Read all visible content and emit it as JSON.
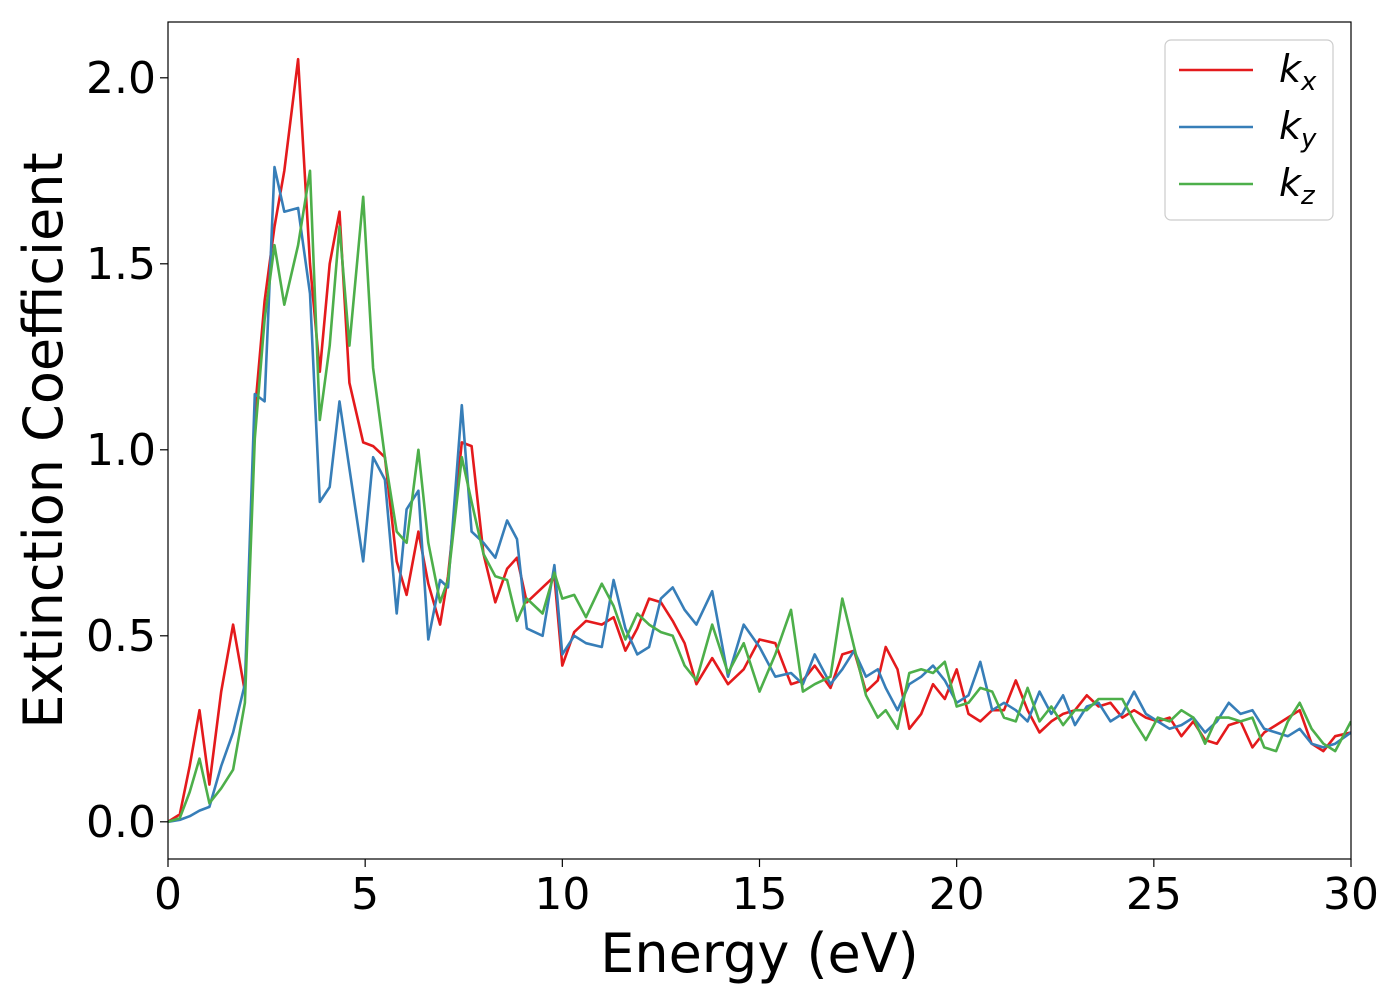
{
  "chart_data": {
    "type": "line",
    "title": "",
    "xlabel": "Energy (eV)",
    "ylabel": "Extinction Coefficient",
    "xlim": [
      0,
      30
    ],
    "ylim": [
      -0.1,
      2.15
    ],
    "xticks": [
      0,
      5,
      10,
      15,
      20,
      25,
      30
    ],
    "xtick_labels": [
      "0",
      "5",
      "10",
      "15",
      "20",
      "25",
      "30"
    ],
    "yticks": [
      0.0,
      0.5,
      1.0,
      1.5,
      2.0
    ],
    "ytick_labels": [
      "0.0",
      "0.5",
      "1.0",
      "1.5",
      "2.0"
    ],
    "grid": false,
    "legend_position": "top-right",
    "series": [
      {
        "name": "k_x",
        "label_main": "k",
        "label_sub": "x",
        "color": "#e41a1c",
        "x": [
          0,
          0.3,
          0.55,
          0.8,
          1.05,
          1.35,
          1.65,
          1.95,
          2.2,
          2.45,
          2.7,
          2.95,
          3.3,
          3.6,
          3.85,
          4.1,
          4.35,
          4.6,
          4.95,
          5.2,
          5.5,
          5.8,
          6.05,
          6.35,
          6.6,
          6.9,
          7.1,
          7.45,
          7.7,
          8.0,
          8.3,
          8.6,
          8.85,
          9.1,
          9.5,
          9.8,
          10.0,
          10.3,
          10.6,
          11.0,
          11.3,
          11.6,
          11.9,
          12.2,
          12.5,
          12.8,
          13.1,
          13.4,
          13.8,
          14.2,
          14.6,
          15.0,
          15.4,
          15.8,
          16.1,
          16.4,
          16.8,
          17.1,
          17.4,
          17.7,
          18.0,
          18.2,
          18.5,
          18.8,
          19.1,
          19.4,
          19.7,
          20.0,
          20.3,
          20.6,
          20.9,
          21.2,
          21.5,
          21.8,
          22.1,
          22.4,
          22.7,
          23.0,
          23.3,
          23.6,
          23.9,
          24.2,
          24.5,
          24.8,
          25.1,
          25.4,
          25.7,
          26.0,
          26.3,
          26.6,
          26.9,
          27.2,
          27.5,
          27.8,
          28.1,
          28.4,
          28.7,
          29.0,
          29.3,
          29.6,
          30.0
        ],
        "y": [
          0.0,
          0.02,
          0.15,
          0.3,
          0.1,
          0.35,
          0.53,
          0.35,
          1.1,
          1.4,
          1.6,
          1.75,
          2.05,
          1.5,
          1.21,
          1.5,
          1.64,
          1.18,
          1.02,
          1.01,
          0.98,
          0.7,
          0.61,
          0.78,
          0.64,
          0.53,
          0.66,
          1.02,
          1.01,
          0.72,
          0.59,
          0.68,
          0.71,
          0.59,
          0.63,
          0.66,
          0.42,
          0.51,
          0.54,
          0.53,
          0.55,
          0.46,
          0.52,
          0.6,
          0.59,
          0.54,
          0.48,
          0.37,
          0.44,
          0.37,
          0.41,
          0.49,
          0.48,
          0.37,
          0.38,
          0.42,
          0.36,
          0.45,
          0.46,
          0.35,
          0.38,
          0.47,
          0.41,
          0.25,
          0.29,
          0.37,
          0.33,
          0.41,
          0.29,
          0.27,
          0.3,
          0.3,
          0.38,
          0.3,
          0.24,
          0.27,
          0.29,
          0.3,
          0.34,
          0.31,
          0.32,
          0.28,
          0.3,
          0.28,
          0.27,
          0.28,
          0.23,
          0.27,
          0.22,
          0.21,
          0.26,
          0.27,
          0.2,
          0.24,
          0.26,
          0.28,
          0.3,
          0.21,
          0.19,
          0.23,
          0.24
        ]
      },
      {
        "name": "k_y",
        "label_main": "k",
        "label_sub": "y",
        "color": "#377eb8",
        "x": [
          0,
          0.3,
          0.55,
          0.8,
          1.05,
          1.35,
          1.65,
          1.95,
          2.2,
          2.45,
          2.7,
          2.95,
          3.3,
          3.6,
          3.85,
          4.1,
          4.35,
          4.6,
          4.95,
          5.2,
          5.5,
          5.8,
          6.05,
          6.35,
          6.6,
          6.9,
          7.1,
          7.45,
          7.7,
          8.0,
          8.3,
          8.6,
          8.85,
          9.1,
          9.5,
          9.8,
          10.0,
          10.3,
          10.6,
          11.0,
          11.3,
          11.6,
          11.9,
          12.2,
          12.5,
          12.8,
          13.1,
          13.4,
          13.8,
          14.2,
          14.6,
          15.0,
          15.4,
          15.8,
          16.1,
          16.4,
          16.8,
          17.1,
          17.4,
          17.7,
          18.0,
          18.2,
          18.5,
          18.8,
          19.1,
          19.4,
          19.7,
          20.0,
          20.3,
          20.6,
          20.9,
          21.2,
          21.5,
          21.8,
          22.1,
          22.4,
          22.7,
          23.0,
          23.3,
          23.6,
          23.9,
          24.2,
          24.5,
          24.8,
          25.1,
          25.4,
          25.7,
          26.0,
          26.3,
          26.6,
          26.9,
          27.2,
          27.5,
          27.8,
          28.1,
          28.4,
          28.7,
          29.0,
          29.3,
          29.6,
          30.0
        ],
        "y": [
          0.0,
          0.005,
          0.015,
          0.03,
          0.04,
          0.15,
          0.24,
          0.37,
          1.15,
          1.13,
          1.76,
          1.64,
          1.65,
          1.42,
          0.86,
          0.9,
          1.13,
          0.95,
          0.7,
          0.98,
          0.92,
          0.56,
          0.84,
          0.89,
          0.49,
          0.65,
          0.63,
          1.12,
          0.78,
          0.75,
          0.71,
          0.81,
          0.76,
          0.52,
          0.5,
          0.69,
          0.45,
          0.5,
          0.48,
          0.47,
          0.65,
          0.52,
          0.45,
          0.47,
          0.6,
          0.63,
          0.57,
          0.53,
          0.62,
          0.39,
          0.53,
          0.47,
          0.39,
          0.4,
          0.37,
          0.45,
          0.37,
          0.41,
          0.46,
          0.39,
          0.41,
          0.36,
          0.3,
          0.37,
          0.39,
          0.42,
          0.38,
          0.32,
          0.34,
          0.43,
          0.3,
          0.32,
          0.3,
          0.27,
          0.35,
          0.29,
          0.34,
          0.26,
          0.31,
          0.32,
          0.27,
          0.29,
          0.35,
          0.29,
          0.27,
          0.25,
          0.26,
          0.28,
          0.24,
          0.27,
          0.32,
          0.29,
          0.3,
          0.25,
          0.24,
          0.23,
          0.25,
          0.21,
          0.2,
          0.21,
          0.24
        ]
      },
      {
        "name": "k_z",
        "label_main": "k",
        "label_sub": "z",
        "color": "#4daf4a",
        "x": [
          0,
          0.3,
          0.55,
          0.8,
          1.05,
          1.35,
          1.65,
          1.95,
          2.2,
          2.45,
          2.7,
          2.95,
          3.3,
          3.6,
          3.85,
          4.1,
          4.35,
          4.6,
          4.95,
          5.2,
          5.5,
          5.8,
          6.05,
          6.35,
          6.6,
          6.9,
          7.1,
          7.45,
          7.7,
          8.0,
          8.3,
          8.6,
          8.85,
          9.1,
          9.5,
          9.8,
          10.0,
          10.3,
          10.6,
          11.0,
          11.3,
          11.6,
          11.9,
          12.2,
          12.5,
          12.8,
          13.1,
          13.4,
          13.8,
          14.2,
          14.6,
          15.0,
          15.4,
          15.8,
          16.1,
          16.4,
          16.8,
          17.1,
          17.4,
          17.7,
          18.0,
          18.2,
          18.5,
          18.8,
          19.1,
          19.4,
          19.7,
          20.0,
          20.3,
          20.6,
          20.9,
          21.2,
          21.5,
          21.8,
          22.1,
          22.4,
          22.7,
          23.0,
          23.3,
          23.6,
          23.9,
          24.2,
          24.5,
          24.8,
          25.1,
          25.4,
          25.7,
          26.0,
          26.3,
          26.6,
          26.9,
          27.2,
          27.5,
          27.8,
          28.1,
          28.4,
          28.7,
          29.0,
          29.3,
          29.6,
          30.0
        ],
        "y": [
          0.0,
          0.01,
          0.08,
          0.17,
          0.05,
          0.09,
          0.14,
          0.32,
          1.03,
          1.35,
          1.55,
          1.39,
          1.55,
          1.75,
          1.08,
          1.28,
          1.6,
          1.28,
          1.68,
          1.22,
          0.98,
          0.78,
          0.75,
          1.0,
          0.75,
          0.59,
          0.65,
          0.98,
          0.86,
          0.72,
          0.66,
          0.65,
          0.54,
          0.6,
          0.56,
          0.67,
          0.6,
          0.61,
          0.55,
          0.64,
          0.58,
          0.49,
          0.56,
          0.53,
          0.51,
          0.5,
          0.42,
          0.38,
          0.53,
          0.4,
          0.48,
          0.35,
          0.45,
          0.57,
          0.35,
          0.37,
          0.39,
          0.6,
          0.47,
          0.34,
          0.28,
          0.3,
          0.25,
          0.4,
          0.41,
          0.4,
          0.43,
          0.31,
          0.32,
          0.36,
          0.35,
          0.28,
          0.27,
          0.36,
          0.27,
          0.31,
          0.26,
          0.3,
          0.3,
          0.33,
          0.33,
          0.33,
          0.27,
          0.22,
          0.28,
          0.27,
          0.3,
          0.28,
          0.21,
          0.28,
          0.28,
          0.27,
          0.28,
          0.2,
          0.19,
          0.27,
          0.32,
          0.25,
          0.21,
          0.19,
          0.27
        ]
      }
    ]
  }
}
